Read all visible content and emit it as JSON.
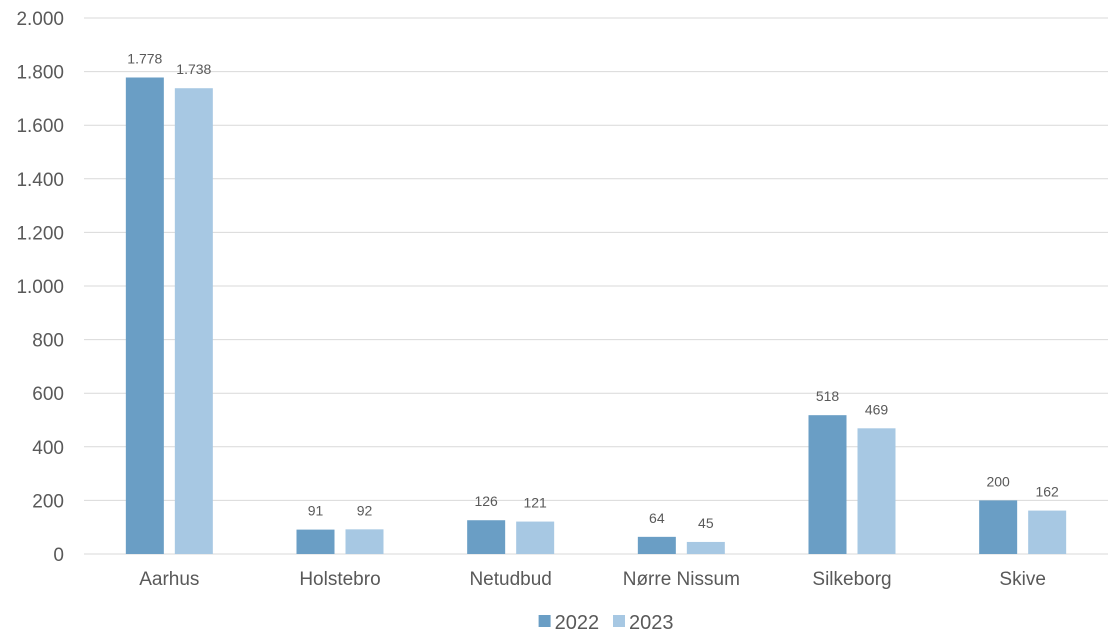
{
  "chart_data": {
    "type": "bar",
    "title": "",
    "xlabel": "",
    "ylabel": "",
    "categories": [
      "Aarhus",
      "Holstebro",
      "Netudbud",
      "Nørre Nissum",
      "Silkeborg",
      "Skive"
    ],
    "series": [
      {
        "name": "2022",
        "color": "#6a9ec5",
        "values": [
          1778,
          91,
          126,
          64,
          518,
          200
        ],
        "labels": [
          "1.778",
          "91",
          "126",
          "64",
          "518",
          "200"
        ]
      },
      {
        "name": "2023",
        "color": "#a7c8e3",
        "values": [
          1738,
          92,
          121,
          45,
          469,
          162
        ],
        "labels": [
          "1.738",
          "92",
          "121",
          "45",
          "469",
          "162"
        ]
      }
    ],
    "ylim": [
      0,
      2000
    ],
    "yticks": [
      0,
      200,
      400,
      600,
      800,
      1000,
      1200,
      1400,
      1600,
      1800,
      2000
    ],
    "ytick_labels": [
      "0",
      "200",
      "400",
      "600",
      "800",
      "1.000",
      "1.200",
      "1.400",
      "1.600",
      "1.800",
      "2.000"
    ],
    "grid": true,
    "legend_position": "bottom-center",
    "gridline_color": "#d9d9d9",
    "text_color": "#595959"
  }
}
